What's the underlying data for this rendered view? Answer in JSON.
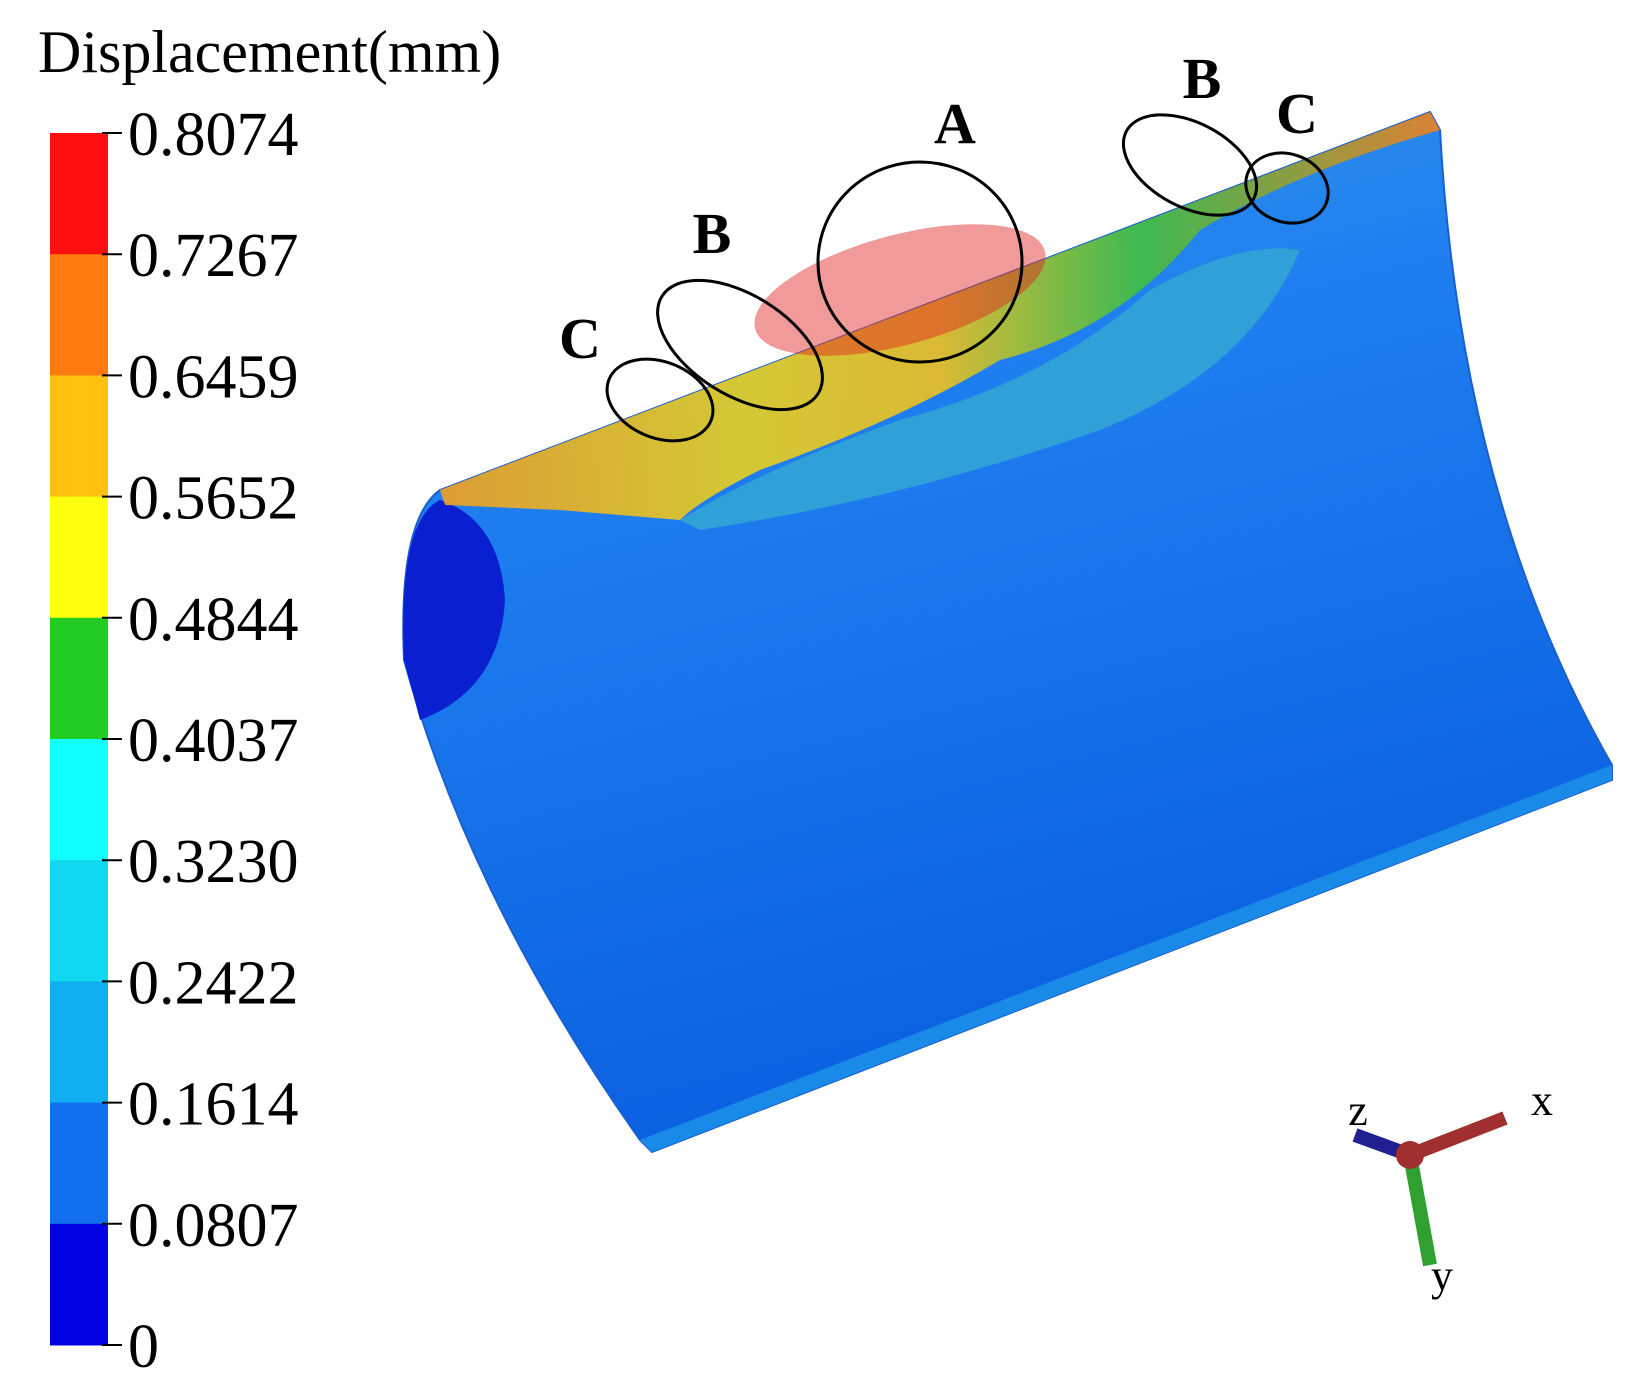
{
  "legend": {
    "title": "Displacement(mm)",
    "levels": [
      "0.8074",
      "0.7267",
      "0.6459",
      "0.5652",
      "0.4844",
      "0.4037",
      "0.3230",
      "0.2422",
      "0.1614",
      "0.0807",
      "0"
    ],
    "colors": [
      "#ff1010",
      "#ff7a10",
      "#ffc010",
      "#ffff10",
      "#22cc22",
      "#10ffff",
      "#10d8f0",
      "#10b0f0",
      "#1070f0",
      "#0000e0"
    ]
  },
  "annotations": {
    "labels": [
      "A",
      "B",
      "C",
      "B",
      "C"
    ]
  },
  "axes_triad": {
    "labels": [
      "z",
      "x",
      "y"
    ]
  }
}
